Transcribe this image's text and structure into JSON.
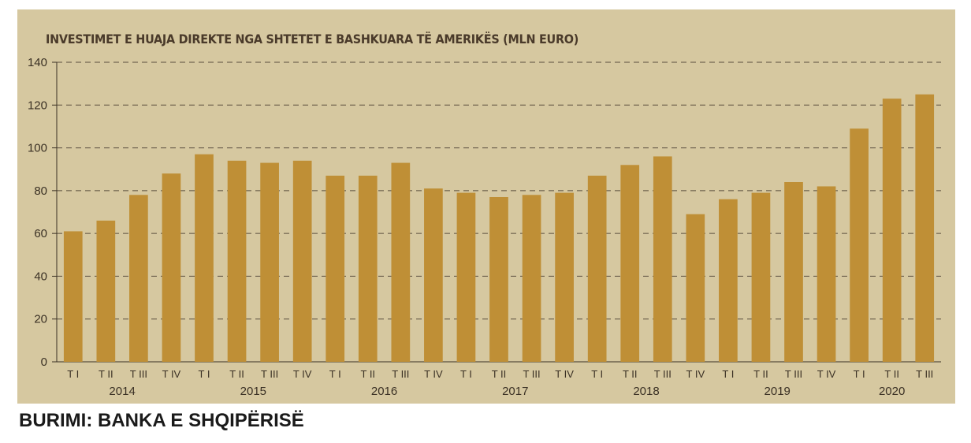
{
  "chart_data": {
    "type": "bar",
    "title": "INVESTIMET E HUAJA DIREKTE NGA SHTETET E BASHKUARA TË AMERIKËS (MLN EURO)",
    "source": "BURIMI: BANKA E SHQIPËRISË",
    "ylim": [
      0,
      140
    ],
    "yticks": [
      0,
      20,
      40,
      60,
      80,
      100,
      120,
      140
    ],
    "grid": true,
    "bar_color": "#bf8f36",
    "background_color": "#d6c8a0",
    "categories": [
      "T I",
      "T II",
      "T III",
      "T IV",
      "T I",
      "T II",
      "T III",
      "T IV",
      "T I",
      "T II",
      "T III",
      "T IV",
      "T I",
      "T II",
      "T III",
      "T IV",
      "T I",
      "T II",
      "T III",
      "T IV",
      "T I",
      "T II",
      "T III",
      "T IV",
      "T I",
      "T II",
      "T III"
    ],
    "years": [
      {
        "label": "2014",
        "quarters": 4
      },
      {
        "label": "2015",
        "quarters": 4
      },
      {
        "label": "2016",
        "quarters": 4
      },
      {
        "label": "2017",
        "quarters": 4
      },
      {
        "label": "2018",
        "quarters": 4
      },
      {
        "label": "2019",
        "quarters": 4
      },
      {
        "label": "2020",
        "quarters": 3
      }
    ],
    "values": [
      61,
      66,
      78,
      88,
      97,
      94,
      93,
      94,
      87,
      87,
      93,
      81,
      79,
      77,
      78,
      79,
      87,
      92,
      96,
      69,
      76,
      79,
      84,
      82,
      109,
      123,
      125
    ]
  }
}
